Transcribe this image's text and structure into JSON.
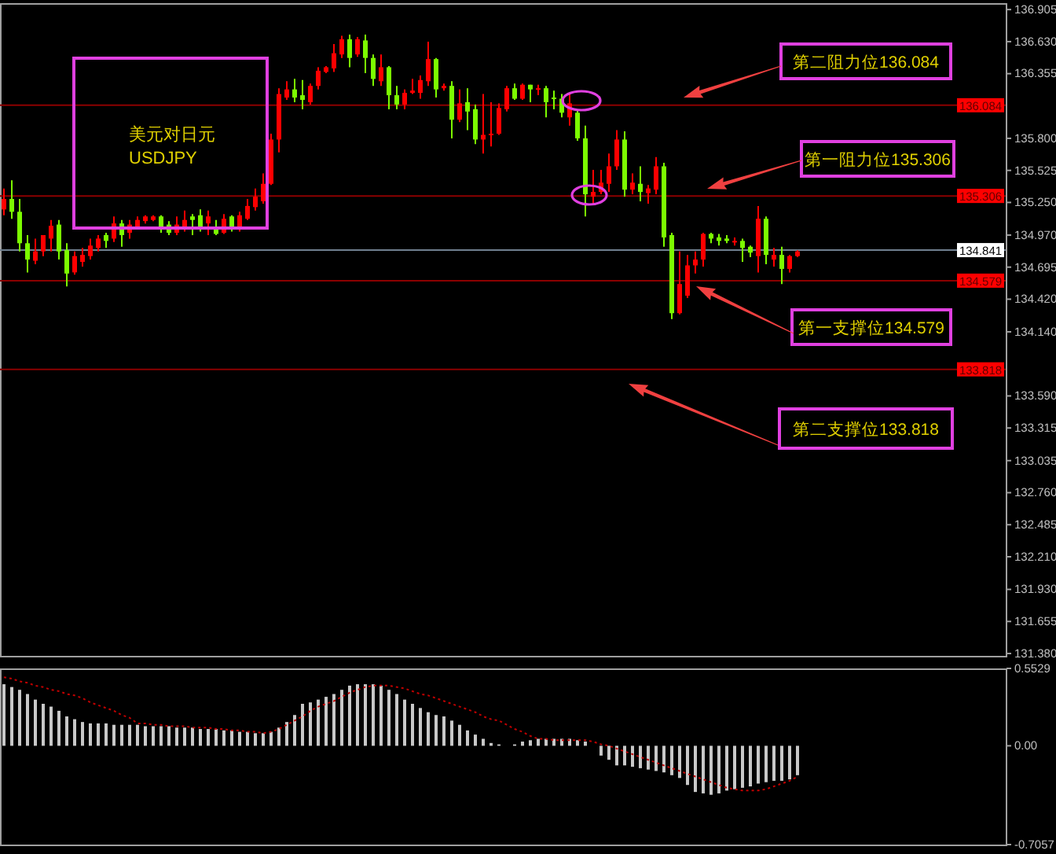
{
  "chart_data": [
    {
      "type": "candlestick",
      "title": "美元对日元",
      "subtitle": "USDJPY",
      "categories": [
        null,
        null,
        null,
        null,
        null,
        null,
        null,
        null,
        null,
        null,
        null,
        null,
        null,
        null,
        null,
        null,
        null,
        null,
        null,
        null,
        null,
        null,
        null,
        null,
        null,
        null,
        null,
        null,
        null,
        null,
        null,
        null,
        null,
        null,
        null,
        null,
        null,
        null,
        null,
        null,
        null,
        null,
        null,
        null,
        null,
        null,
        null,
        null,
        null,
        null,
        null,
        null,
        null,
        null,
        null,
        null,
        null,
        null,
        null,
        null,
        null,
        null,
        null,
        null,
        null,
        null,
        null,
        null,
        null,
        null,
        null,
        null,
        null,
        null,
        null,
        null,
        null,
        null,
        null,
        null,
        null,
        null,
        null,
        null,
        null,
        null,
        null,
        null,
        null,
        null,
        null,
        null,
        null,
        null,
        null,
        null,
        null,
        null,
        null,
        null,
        null,
        null,
        null,
        null,
        null,
        null,
        null,
        null,
        null,
        null,
        null,
        null,
        null,
        null,
        null,
        null,
        null,
        null,
        null,
        null,
        null,
        null,
        null,
        null,
        null,
        null,
        null,
        null
      ],
      "ohlc": [
        [
          135.19,
          135.37,
          135.14,
          135.28
        ],
        [
          135.28,
          135.44,
          135.11,
          135.17
        ],
        [
          135.17,
          135.28,
          134.83,
          134.9
        ],
        [
          134.9,
          134.97,
          134.65,
          134.76
        ],
        [
          134.75,
          134.94,
          134.72,
          134.83
        ],
        [
          134.83,
          134.97,
          134.79,
          134.97
        ],
        [
          134.94,
          135.1,
          134.83,
          135.05
        ],
        [
          135.06,
          135.1,
          134.76,
          134.83
        ],
        [
          134.84,
          134.9,
          134.53,
          134.64
        ],
        [
          134.65,
          134.83,
          134.63,
          134.79
        ],
        [
          134.74,
          134.86,
          134.7,
          134.8
        ],
        [
          134.79,
          134.94,
          134.76,
          134.88
        ],
        [
          134.86,
          134.97,
          134.83,
          134.94
        ],
        [
          134.97,
          134.99,
          134.86,
          134.92
        ],
        [
          134.94,
          135.13,
          134.91,
          135.07
        ],
        [
          135.07,
          135.1,
          134.87,
          134.97
        ],
        [
          134.99,
          135.1,
          134.94,
          135.06
        ],
        [
          135.03,
          135.13,
          135.02,
          135.1
        ],
        [
          135.09,
          135.14,
          135.07,
          135.13
        ],
        [
          135.1,
          135.14,
          135.09,
          135.13
        ],
        [
          135.13,
          135.14,
          134.99,
          135.03
        ],
        [
          135.06,
          135.09,
          134.97,
          134.99
        ],
        [
          134.99,
          135.13,
          134.97,
          135.06
        ],
        [
          135.03,
          135.18,
          135.0,
          135.1
        ],
        [
          135.13,
          135.15,
          134.97,
          135.1
        ],
        [
          135.14,
          135.19,
          135.0,
          135.02
        ],
        [
          135.07,
          135.18,
          134.97,
          135.13
        ],
        [
          135.03,
          135.1,
          134.97,
          134.98
        ],
        [
          134.99,
          135.15,
          134.98,
          135.11
        ],
        [
          135.13,
          135.14,
          135.0,
          135.02
        ],
        [
          135.03,
          135.17,
          135.0,
          135.14
        ],
        [
          135.11,
          135.28,
          135.1,
          135.22
        ],
        [
          135.21,
          135.37,
          135.18,
          135.3
        ],
        [
          135.26,
          135.5,
          135.24,
          135.41
        ],
        [
          135.41,
          135.84,
          135.4,
          135.79
        ],
        [
          135.79,
          136.23,
          135.68,
          136.18
        ],
        [
          136.15,
          136.29,
          136.13,
          136.22
        ],
        [
          136.22,
          136.31,
          136.11,
          136.15
        ],
        [
          136.17,
          136.3,
          136.05,
          136.13
        ],
        [
          136.11,
          136.27,
          136.09,
          136.25
        ],
        [
          136.25,
          136.41,
          136.22,
          136.38
        ],
        [
          136.37,
          136.42,
          136.36,
          136.41
        ],
        [
          136.4,
          136.61,
          136.37,
          136.53
        ],
        [
          136.52,
          136.68,
          136.49,
          136.65
        ],
        [
          136.65,
          136.69,
          136.41,
          136.49
        ],
        [
          136.52,
          136.67,
          136.5,
          136.65
        ],
        [
          136.64,
          136.69,
          136.36,
          136.49
        ],
        [
          136.49,
          136.52,
          136.25,
          136.31
        ],
        [
          136.29,
          136.52,
          136.25,
          136.41
        ],
        [
          136.41,
          136.42,
          136.05,
          136.17
        ],
        [
          136.17,
          136.25,
          136.05,
          136.09
        ],
        [
          136.09,
          136.22,
          136.05,
          136.19
        ],
        [
          136.19,
          136.31,
          136.18,
          136.21
        ],
        [
          136.19,
          136.34,
          136.14,
          136.3
        ],
        [
          136.29,
          136.63,
          136.25,
          136.48
        ],
        [
          136.48,
          136.49,
          136.15,
          136.22
        ],
        [
          136.23,
          136.27,
          136.21,
          136.25
        ],
        [
          136.25,
          136.29,
          135.8,
          135.96
        ],
        [
          135.96,
          136.22,
          135.94,
          136.1
        ],
        [
          136.11,
          136.23,
          135.87,
          136.03
        ],
        [
          136.05,
          136.09,
          135.75,
          135.79
        ],
        [
          135.79,
          136.18,
          135.67,
          135.83
        ],
        [
          135.83,
          136.11,
          135.73,
          135.84
        ],
        [
          135.84,
          136.1,
          135.83,
          136.06
        ],
        [
          136.05,
          136.25,
          136.03,
          136.23
        ],
        [
          136.23,
          136.27,
          136.13,
          136.14
        ],
        [
          136.14,
          136.27,
          136.13,
          136.26
        ],
        [
          136.26,
          136.26,
          136.11,
          136.22
        ],
        [
          136.22,
          136.26,
          136.17,
          136.23
        ],
        [
          136.23,
          136.25,
          135.98,
          136.11
        ],
        [
          136.15,
          136.21,
          136.05,
          136.14
        ],
        [
          136.14,
          136.18,
          135.98,
          136.02
        ],
        [
          135.98,
          136.18,
          135.91,
          136.1
        ],
        [
          136.02,
          136.05,
          135.78,
          135.8
        ],
        [
          135.8,
          135.91,
          135.13,
          135.32
        ],
        [
          135.3,
          135.53,
          135.24,
          135.34
        ],
        [
          135.34,
          135.53,
          135.32,
          135.42
        ],
        [
          135.41,
          135.67,
          135.34,
          135.56
        ],
        [
          135.56,
          135.87,
          135.53,
          135.79
        ],
        [
          135.79,
          135.86,
          135.3,
          135.36
        ],
        [
          135.36,
          135.5,
          135.32,
          135.42
        ],
        [
          135.41,
          135.56,
          135.26,
          135.34
        ],
        [
          135.33,
          135.4,
          135.24,
          135.37
        ],
        [
          135.36,
          135.64,
          135.32,
          135.56
        ],
        [
          135.56,
          135.59,
          134.87,
          134.95
        ],
        [
          134.97,
          134.99,
          134.25,
          134.3
        ],
        [
          134.3,
          134.83,
          134.29,
          134.55
        ],
        [
          134.45,
          134.8,
          134.43,
          134.71
        ],
        [
          134.71,
          134.83,
          134.64,
          134.76
        ],
        [
          134.76,
          134.99,
          134.7,
          134.98
        ],
        [
          134.98,
          134.99,
          134.9,
          134.94
        ],
        [
          134.95,
          134.98,
          134.88,
          134.92
        ],
        [
          134.94,
          134.97,
          134.9,
          134.92
        ],
        [
          134.91,
          134.95,
          134.88,
          134.92
        ],
        [
          134.92,
          134.94,
          134.74,
          134.86
        ],
        [
          134.87,
          134.88,
          134.78,
          134.82
        ],
        [
          134.79,
          135.22,
          134.65,
          135.11
        ],
        [
          135.11,
          135.13,
          134.72,
          134.8
        ],
        [
          134.76,
          134.86,
          134.7,
          134.8
        ],
        [
          134.8,
          134.87,
          134.55,
          134.68
        ],
        [
          134.68,
          134.8,
          134.65,
          134.79
        ],
        [
          134.79,
          134.84,
          134.78,
          134.83
        ],
        null,
        null,
        null,
        null,
        null,
        null,
        null,
        null,
        null,
        null,
        null,
        null,
        null,
        null,
        null,
        null,
        null,
        null,
        null,
        null,
        null,
        null,
        null,
        null,
        null,
        null
      ],
      "colors": [
        "#ff0000",
        "#7cfc00",
        "#7cfc00",
        "#7cfc00",
        "#ff0000",
        "#ff0000",
        "#ff0000",
        "#7cfc00",
        "#7cfc00",
        "#ff0000",
        "#ff0000",
        "#ff0000",
        "#ff0000",
        "#7cfc00",
        "#ff0000",
        "#7cfc00",
        "#ff0000",
        "#ff0000",
        "#ff0000",
        "#ff0000",
        "#7cfc00",
        "#7cfc00",
        "#ff0000",
        "#ff0000",
        "#7cfc00",
        "#7cfc00",
        "#ff0000",
        "#7cfc00",
        "#ff0000",
        "#7cfc00",
        "#ff0000",
        "#ff0000",
        "#ff0000",
        "#ff0000",
        "#ff0000",
        "#ff0000",
        "#ff0000",
        "#7cfc00",
        "#7cfc00",
        "#ff0000",
        "#ff0000",
        "#ff0000",
        "#ff0000",
        "#ff0000",
        "#7cfc00",
        "#ff0000",
        "#7cfc00",
        "#7cfc00",
        "#ff0000",
        "#7cfc00",
        "#7cfc00",
        "#ff0000",
        "#ff0000",
        "#ff0000",
        "#ff0000",
        "#7cfc00",
        "#ff0000",
        "#7cfc00",
        "#ff0000",
        "#7cfc00",
        "#7cfc00",
        "#ff0000",
        "#ff0000",
        "#ff0000",
        "#ff0000",
        "#7cfc00",
        "#ff0000",
        "#7cfc00",
        "#ff0000",
        "#7cfc00",
        "#7cfc00",
        "#7cfc00",
        "#ff0000",
        "#7cfc00",
        "#7cfc00",
        "#ff0000",
        "#ff0000",
        "#ff0000",
        "#ff0000",
        "#7cfc00",
        "#ff0000",
        "#7cfc00",
        "#ff0000",
        "#ff0000",
        "#7cfc00",
        "#7cfc00",
        "#ff0000",
        "#ff0000",
        "#ff0000",
        "#ff0000",
        "#7cfc00",
        "#7cfc00",
        "#7cfc00",
        "#ff0000",
        "#7cfc00",
        "#7cfc00",
        "#ff0000",
        "#7cfc00",
        "#ff0000",
        "#7cfc00",
        "#ff0000",
        "#ff0000",
        null,
        null,
        null,
        null,
        null,
        null,
        null,
        null,
        null,
        null,
        null,
        null,
        null,
        null,
        null,
        null,
        null,
        null,
        null,
        null,
        null,
        null,
        null,
        null,
        null,
        null
      ],
      "ylim": [
        131.36,
        136.96
      ],
      "yticks": [
        {
          "value": 131.38,
          "label": "131.380"
        },
        {
          "value": 131.655,
          "label": "131.655"
        },
        {
          "value": 131.93,
          "label": "131.930"
        },
        {
          "value": 132.21,
          "label": "132.210"
        },
        {
          "value": 132.485,
          "label": "132.485"
        },
        {
          "value": 132.76,
          "label": "132.760"
        },
        {
          "value": 133.035,
          "label": "133.035"
        },
        {
          "value": 133.315,
          "label": "133.315"
        },
        {
          "value": 133.59,
          "label": "133.590"
        },
        {
          "value": 134.14,
          "label": "134.140"
        },
        {
          "value": 134.42,
          "label": "134.420"
        },
        {
          "value": 134.695,
          "label": "134.695"
        },
        {
          "value": 134.97,
          "label": "134.970"
        },
        {
          "value": 135.25,
          "label": "135.250"
        },
        {
          "value": 135.525,
          "label": "135.525"
        },
        {
          "value": 135.8,
          "label": "135.800"
        },
        {
          "value": 136.355,
          "label": "136.355"
        },
        {
          "value": 136.63,
          "label": "136.630"
        },
        {
          "value": 136.905,
          "label": "136.905"
        }
      ],
      "tick_labels": "y",
      "ref_lines": [
        {
          "axis": "y",
          "value": 136.084,
          "label": "136.084",
          "color": "#8b0000"
        },
        {
          "axis": "y",
          "value": 135.306,
          "label": "135.306",
          "color": "#8b0000"
        },
        {
          "axis": "y",
          "value": 134.841,
          "label": "134.841",
          "color": "#708090"
        },
        {
          "axis": "y",
          "value": 134.579,
          "label": "134.579",
          "color": "#8b0000"
        },
        {
          "axis": "y",
          "value": 133.818,
          "label": "133.818",
          "color": "#8b0000"
        }
      ],
      "annotations": [
        "第二阻力位136.084",
        "第一阻力位135.306",
        "第一支撑位134.579",
        "第二支撑位133.818"
      ]
    },
    {
      "type": "bar",
      "categories": [
        null,
        null,
        null,
        null,
        null,
        null,
        null,
        null,
        null,
        null,
        null,
        null,
        null,
        null,
        null,
        null,
        null,
        null,
        null,
        null,
        null,
        null,
        null,
        null,
        null,
        null,
        null,
        null,
        null,
        null,
        null,
        null,
        null,
        null,
        null,
        null,
        null,
        null,
        null,
        null,
        null,
        null,
        null,
        null,
        null,
        null,
        null,
        null,
        null,
        null,
        null,
        null,
        null,
        null,
        null,
        null,
        null,
        null,
        null,
        null,
        null,
        null,
        null,
        null,
        null,
        null,
        null,
        null,
        null,
        null,
        null,
        null,
        null,
        null,
        null,
        null,
        null,
        null,
        null,
        null,
        null,
        null,
        null,
        null,
        null,
        null,
        null,
        null,
        null,
        null,
        null,
        null,
        null,
        null,
        null,
        null,
        null,
        null,
        null,
        null,
        null,
        null,
        null,
        null,
        null,
        null,
        null,
        null,
        null,
        null,
        null,
        null,
        null,
        null,
        null,
        null,
        null,
        null,
        null,
        null,
        null,
        null,
        null,
        null,
        null,
        null,
        null,
        null
      ],
      "series": [
        {
          "type": "bar",
          "color": "#c8c8c8",
          "values": [
            0.44,
            0.42,
            0.4,
            0.37,
            0.33,
            0.3,
            0.28,
            0.25,
            0.21,
            0.19,
            0.17,
            0.16,
            0.16,
            0.16,
            0.15,
            0.15,
            0.15,
            0.15,
            0.14,
            0.14,
            0.14,
            0.14,
            0.13,
            0.13,
            0.13,
            0.12,
            0.12,
            0.12,
            0.11,
            0.11,
            0.1,
            0.1,
            0.09,
            0.09,
            0.1,
            0.13,
            0.17,
            0.22,
            0.3,
            0.31,
            0.33,
            0.35,
            0.37,
            0.4,
            0.43,
            0.44,
            0.44,
            0.44,
            0.43,
            0.4,
            0.37,
            0.33,
            0.3,
            0.27,
            0.24,
            0.22,
            0.21,
            0.18,
            0.15,
            0.11,
            0.08,
            0.05,
            0.02,
            0.01,
            0.0,
            0.01,
            0.03,
            0.04,
            0.05,
            0.05,
            0.05,
            0.05,
            0.05,
            0.04,
            0.03,
            0.0,
            -0.07,
            -0.1,
            -0.14,
            -0.14,
            -0.15,
            -0.16,
            -0.17,
            -0.18,
            -0.19,
            -0.21,
            -0.23,
            -0.28,
            -0.33,
            -0.34,
            -0.35,
            -0.34,
            -0.32,
            -0.31,
            -0.3,
            -0.29,
            -0.27,
            -0.26,
            -0.25,
            -0.25,
            -0.24,
            -0.21,
            null,
            null,
            null,
            null,
            null,
            null,
            null,
            null,
            null,
            null,
            null,
            null,
            null,
            null,
            null,
            null,
            null,
            null,
            null,
            null,
            null,
            null,
            null,
            null,
            null,
            null
          ]
        },
        {
          "type": "line",
          "color": "#c00000",
          "line_style": "dotted",
          "values": [
            0.49,
            0.48,
            0.46,
            0.45,
            0.43,
            0.42,
            0.4,
            0.39,
            0.37,
            0.36,
            0.34,
            0.31,
            0.29,
            0.27,
            0.25,
            0.22,
            0.2,
            0.16,
            0.16,
            0.15,
            0.15,
            0.14,
            0.14,
            0.14,
            0.13,
            0.13,
            0.13,
            0.12,
            0.12,
            0.11,
            0.11,
            0.1,
            0.1,
            0.09,
            0.1,
            0.12,
            0.15,
            0.18,
            0.21,
            0.25,
            0.28,
            0.3,
            0.32,
            0.35,
            0.38,
            0.4,
            0.42,
            0.43,
            0.43,
            0.43,
            0.42,
            0.41,
            0.39,
            0.37,
            0.36,
            0.34,
            0.32,
            0.3,
            0.28,
            0.26,
            0.24,
            0.21,
            0.19,
            0.18,
            0.15,
            0.12,
            0.1,
            0.07,
            0.05,
            0.05,
            0.04,
            0.04,
            0.04,
            0.04,
            0.04,
            0.03,
            0.01,
            0.0,
            -0.02,
            -0.04,
            -0.06,
            -0.08,
            -0.1,
            -0.12,
            -0.14,
            -0.16,
            -0.18,
            -0.2,
            -0.22,
            -0.24,
            -0.26,
            -0.28,
            -0.3,
            -0.31,
            -0.32,
            -0.32,
            -0.32,
            -0.31,
            -0.29,
            -0.27,
            -0.25,
            -0.22,
            null,
            null,
            null,
            null,
            null,
            null,
            null,
            null,
            null,
            null,
            null,
            null,
            null,
            null,
            null,
            null,
            null,
            null,
            null,
            null,
            null,
            null,
            null,
            null,
            null,
            null
          ]
        }
      ],
      "ylim": [
        -0.7057,
        0.5529
      ],
      "yticks": [
        -0.7057,
        {
          "value": 0,
          "label": "0.00"
        },
        0.5529
      ],
      "tick_labels": "y"
    }
  ]
}
